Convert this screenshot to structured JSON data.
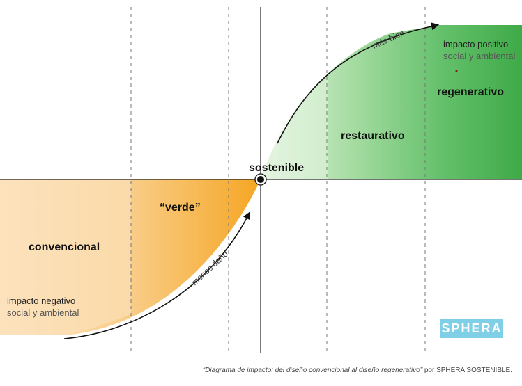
{
  "diagram": {
    "top_arrow_label": "más bien",
    "bottom_arrow_label": "menos daño",
    "center_label": "sostenible",
    "stages": {
      "convencional": "convencional",
      "verde": "“verde”",
      "restaurativo": "restaurativo",
      "regenerativo": "regenerativo"
    },
    "positive": {
      "line1": "impacto positivo",
      "line2": "social y ambiental"
    },
    "negative": {
      "line1": "impacto negativo",
      "line2": "social y ambiental"
    },
    "colors": {
      "orange_light": "#fbd9a4",
      "orange_mid": "#f8c272",
      "orange_dark": "#f5a623",
      "green_light": "#c8e8c4",
      "green_mid": "#86cf86",
      "green_dark": "#3fae4a",
      "logo_bg": "#7fd0e6"
    }
  },
  "logo": {
    "text": "SPHERA"
  },
  "caption": {
    "italic": "“Diagrama de impacto: del diseño convencional al diseño regenerativo”",
    "plain": " por SPHERA SOSTENIBLE."
  }
}
